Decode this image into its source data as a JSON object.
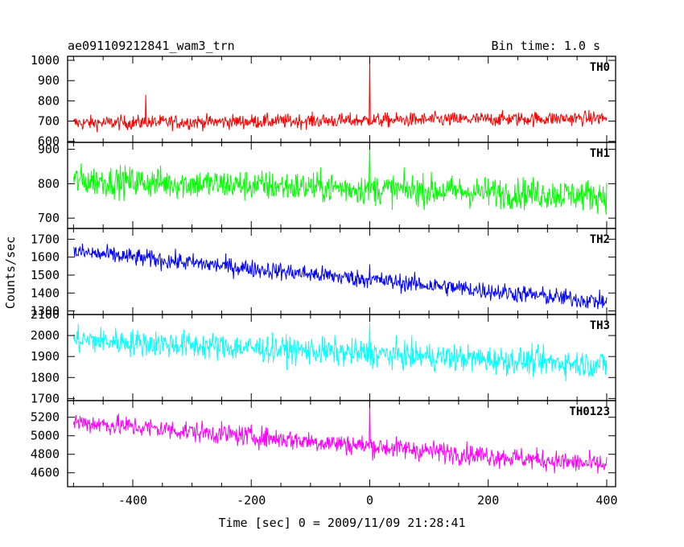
{
  "header": {
    "title": "ae091109212841_wam3_trn",
    "bin_time": "Bin time: 1.0 s"
  },
  "chart_data": {
    "type": "line",
    "xlabel": "Time [sec] 0 = 2009/11/09 21:28:41",
    "ylabel": "Counts/sec",
    "xlim": [
      -510,
      415
    ],
    "xticks": [
      -400,
      -200,
      0,
      200,
      400
    ],
    "grid": false,
    "panels": [
      {
        "name": "TH0",
        "color": "#ff0000",
        "ylim": [
          595,
          1020
        ],
        "yticks": [
          600,
          700,
          800,
          900,
          1000
        ],
        "trend": {
          "start": 690,
          "end": 715
        },
        "noise": 30,
        "spike": {
          "x": 0,
          "value": 1020
        },
        "extras": [
          {
            "x": -378,
            "value": 830
          }
        ]
      },
      {
        "name": "TH1",
        "color": "#00ff00",
        "ylim": [
          670,
          920
        ],
        "yticks": [
          700,
          800,
          900
        ],
        "trend": {
          "start": 810,
          "end": 765
        },
        "noise": 38,
        "spike": {
          "x": 0,
          "value": 915
        },
        "extras": []
      },
      {
        "name": "TH2",
        "color": "#0000ff",
        "ylim": [
          1280,
          1760
        ],
        "yticks": [
          1300,
          1400,
          1500,
          1600,
          1700
        ],
        "trend": {
          "start": 1630,
          "end": 1350
        },
        "noise": 42,
        "spike": {
          "x": 0,
          "value": 1560
        },
        "extras": []
      },
      {
        "name": "TH3",
        "color": "#00ffff",
        "ylim": [
          1690,
          2100
        ],
        "yticks": [
          1700,
          1800,
          1900,
          2000,
          2100
        ],
        "trend": {
          "start": 1980,
          "end": 1860
        },
        "noise": 55,
        "spike": {
          "x": 0,
          "value": 2060
        },
        "extras": []
      },
      {
        "name": "TH0123",
        "color": "#ff00ff",
        "ylim": [
          4450,
          5380
        ],
        "yticks": [
          4600,
          4800,
          5000,
          5200
        ],
        "trend": {
          "start": 5150,
          "end": 4680
        },
        "noise": 95,
        "spike": {
          "x": 0,
          "value": 5380
        },
        "extras": []
      }
    ]
  }
}
